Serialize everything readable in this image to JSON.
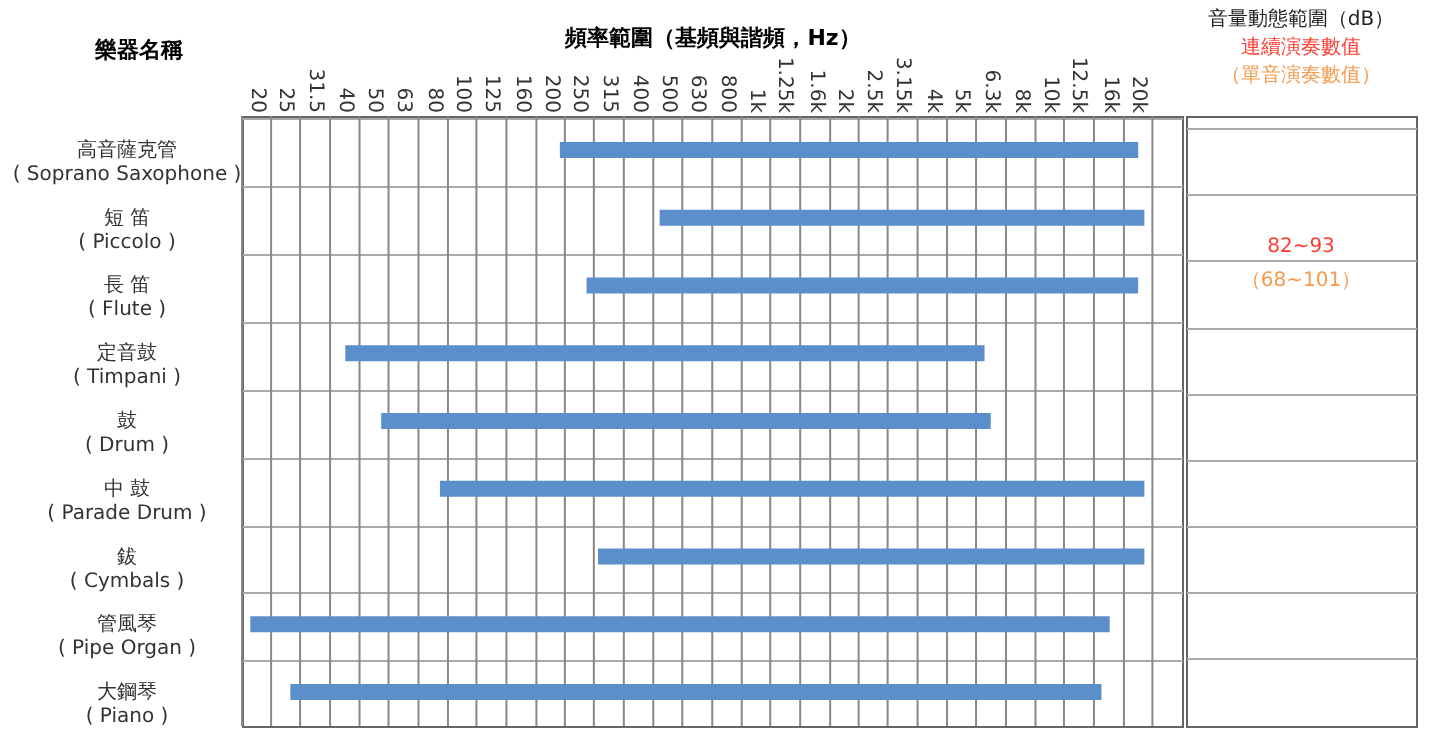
{
  "chart_data": {
    "type": "bar",
    "orientation": "horizontal",
    "xlabel": "頻率範圍（基頻與諧頻，Hz）",
    "ylabel": "樂器名稱",
    "categories": [
      "高音薩克管\n( Soprano Saxophone )",
      "短 笛\n( Piccolo )",
      "長 笛\n( Flute )",
      "定音鼓\n( Timpani )",
      "鼓\n( Drum )",
      "中 鼓\n( Parade Drum )",
      "鈸\n( Cymbals )",
      "管風琴\n( Pipe Organ )",
      "大鋼琴\n( Piano )"
    ],
    "base": [
      215,
      470,
      265,
      40,
      53,
      84,
      290,
      19,
      26
    ],
    "values": [
      19785,
      20530,
      19735,
      5960,
      6247,
      20916,
      20710,
      15981,
      14974
    ],
    "color": "#5b8fcb",
    "xlim": [
      17.8,
      28200
    ],
    "xticks": [
      20,
      25,
      31.5,
      40,
      50,
      63,
      80,
      100,
      125,
      160,
      200,
      250,
      315,
      400,
      500,
      630,
      800,
      {
        "value": 1000,
        "label": "1k"
      },
      {
        "value": 1250,
        "label": "1.25k"
      },
      {
        "value": 1600,
        "label": "1.6k"
      },
      {
        "value": 2000,
        "label": "2k"
      },
      {
        "value": 2500,
        "label": "2.5k"
      },
      {
        "value": 3150,
        "label": "3.15k"
      },
      {
        "value": 4000,
        "label": "4k"
      },
      {
        "value": 5000,
        "label": "5k"
      },
      {
        "value": 6300,
        "label": "6.3k"
      },
      {
        "value": 8000,
        "label": "8k"
      },
      {
        "value": 10000,
        "label": "10k"
      },
      {
        "value": 12500,
        "label": "12.5k"
      },
      {
        "value": 16000,
        "label": "16k"
      },
      {
        "value": 20000,
        "label": "20k"
      }
    ],
    "log": "x",
    "grid": true,
    "annotations": [
      "音量動態範圍（dB）",
      "連續演奏數值",
      "（單音演奏數值）",
      "82~93",
      "（68~101）"
    ]
  }
}
